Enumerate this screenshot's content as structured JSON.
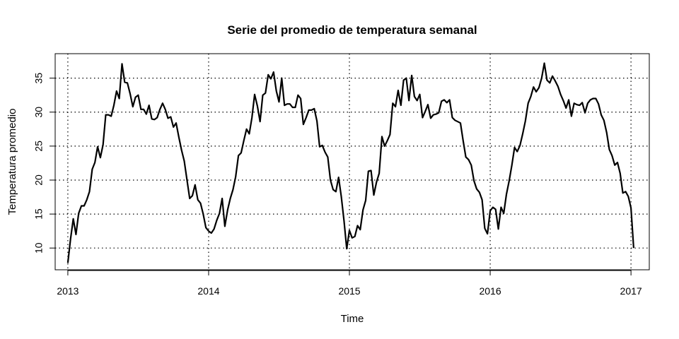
{
  "chart_data": {
    "type": "line",
    "title": "Serie del promedio de temperatura semanal",
    "xlabel": "Time",
    "ylabel": "Temperatura promedio",
    "x_ticks": [
      2013,
      2014,
      2015,
      2016,
      2017
    ],
    "y_ticks": [
      10,
      15,
      20,
      25,
      30,
      35
    ],
    "xlim": [
      2012.91,
      2017.13
    ],
    "ylim": [
      6.8,
      38.6
    ],
    "grid": "dotted",
    "line_color": "#000000",
    "series": [
      {
        "x": [
          2013.0,
          2013.0192,
          2013.0385,
          2013.0577,
          2013.0769,
          2013.0962,
          2013.1154,
          2013.1346,
          2013.1538,
          2013.1731,
          2013.1923,
          2013.2115,
          2013.2308,
          2013.25,
          2013.2692,
          2013.2885,
          2013.3077,
          2013.3269,
          2013.3462,
          2013.3654,
          2013.3846,
          2013.4038,
          2013.4231,
          2013.4423,
          2013.4615,
          2013.4808,
          2013.5,
          2013.5192,
          2013.5385,
          2013.5577,
          2013.5769,
          2013.5962,
          2013.6154,
          2013.6346,
          2013.6538,
          2013.6731,
          2013.6923,
          2013.7115,
          2013.7308,
          2013.75,
          2013.7692,
          2013.7885,
          2013.8077,
          2013.8269,
          2013.8462,
          2013.8654,
          2013.8846,
          2013.9038,
          2013.9231,
          2013.9423,
          2013.9615,
          2013.9808,
          2014.0,
          2014.0192,
          2014.0385,
          2014.0577,
          2014.0769,
          2014.0962,
          2014.1154,
          2014.1346,
          2014.1538,
          2014.1731,
          2014.1923,
          2014.2115,
          2014.2308,
          2014.25,
          2014.2692,
          2014.2885,
          2014.3077,
          2014.3269,
          2014.3462,
          2014.3654,
          2014.3846,
          2014.4038,
          2014.4231,
          2014.4423,
          2014.4615,
          2014.4808,
          2014.5,
          2014.5192,
          2014.5385,
          2014.5577,
          2014.5769,
          2014.5962,
          2014.6154,
          2014.6346,
          2014.6538,
          2014.6731,
          2014.6923,
          2014.7115,
          2014.7308,
          2014.75,
          2014.7692,
          2014.7885,
          2014.8077,
          2014.8269,
          2014.8462,
          2014.8654,
          2014.8846,
          2014.9038,
          2014.9231,
          2014.9423,
          2014.9615,
          2014.9808,
          2015.0,
          2015.0192,
          2015.0385,
          2015.0577,
          2015.0769,
          2015.0962,
          2015.1154,
          2015.1346,
          2015.1538,
          2015.1731,
          2015.1923,
          2015.2115,
          2015.2308,
          2015.25,
          2015.2692,
          2015.2885,
          2015.3077,
          2015.3269,
          2015.3462,
          2015.3654,
          2015.3846,
          2015.4038,
          2015.4231,
          2015.4423,
          2015.4615,
          2015.4808,
          2015.5,
          2015.5192,
          2015.5385,
          2015.5577,
          2015.5769,
          2015.5962,
          2015.6154,
          2015.6346,
          2015.6538,
          2015.6731,
          2015.6923,
          2015.7115,
          2015.7308,
          2015.75,
          2015.7692,
          2015.7885,
          2015.8077,
          2015.8269,
          2015.8462,
          2015.8654,
          2015.8846,
          2015.9038,
          2015.9231,
          2015.9423,
          2015.9615,
          2015.9808,
          2016.0,
          2016.0192,
          2016.0385,
          2016.0577,
          2016.0769,
          2016.0962,
          2016.1154,
          2016.1346,
          2016.1538,
          2016.1731,
          2016.1923,
          2016.2115,
          2016.2308,
          2016.25,
          2016.2692,
          2016.2885,
          2016.3077,
          2016.3269,
          2016.3462,
          2016.3654,
          2016.3846,
          2016.4038,
          2016.4231,
          2016.4423,
          2016.4615,
          2016.4808,
          2016.5,
          2016.5192,
          2016.5385,
          2016.5577,
          2016.5769,
          2016.5962,
          2016.6154,
          2016.6346,
          2016.6538,
          2016.6731,
          2016.6923,
          2016.7115,
          2016.7308,
          2016.75,
          2016.7692,
          2016.7885,
          2016.8077,
          2016.8269,
          2016.8462,
          2016.8654,
          2016.8846,
          2016.9038,
          2016.9231,
          2016.9423,
          2016.9615,
          2016.9808,
          2017.0,
          2017.0192
        ],
        "values": [
          7.8,
          11.3,
          14.3,
          12.0,
          15.1,
          16.2,
          16.2,
          17.1,
          18.3,
          21.6,
          22.6,
          24.9,
          23.3,
          25.2,
          29.6,
          29.6,
          29.4,
          31.0,
          33.1,
          32.0,
          37.1,
          34.4,
          34.3,
          32.7,
          30.8,
          32.2,
          32.5,
          30.4,
          30.4,
          29.7,
          31.0,
          29.0,
          28.9,
          29.2,
          30.4,
          31.3,
          30.4,
          29.1,
          29.3,
          27.8,
          28.4,
          26.3,
          24.4,
          22.8,
          20.0,
          17.3,
          17.7,
          19.3,
          17.1,
          16.6,
          15.0,
          13.0,
          12.5,
          12.2,
          12.8,
          14.1,
          15.1,
          17.3,
          13.2,
          15.6,
          17.3,
          18.6,
          20.5,
          23.6,
          24.0,
          25.8,
          27.5,
          26.8,
          29.2,
          32.6,
          30.9,
          28.6,
          32.5,
          32.8,
          35.5,
          34.9,
          35.9,
          33.1,
          31.5,
          35.0,
          31.0,
          31.2,
          31.2,
          30.7,
          30.7,
          32.5,
          32.0,
          28.2,
          29.2,
          30.3,
          30.3,
          30.5,
          28.7,
          24.9,
          25.1,
          24.1,
          23.4,
          20.0,
          18.6,
          18.3,
          20.4,
          17.6,
          14.0,
          9.9,
          12.6,
          11.5,
          11.7,
          13.3,
          12.7,
          15.6,
          17.0,
          21.3,
          21.4,
          17.8,
          19.7,
          21.0,
          26.4,
          25.0,
          25.8,
          26.7,
          31.3,
          30.8,
          33.2,
          31.0,
          34.7,
          35.0,
          31.7,
          35.4,
          32.3,
          31.7,
          32.6,
          29.2,
          30.1,
          31.1,
          29.1,
          29.6,
          29.7,
          29.9,
          31.6,
          31.8,
          31.4,
          31.8,
          29.2,
          28.8,
          28.6,
          28.4,
          25.8,
          23.4,
          23.0,
          22.2,
          19.9,
          18.7,
          18.2,
          17.1,
          12.9,
          12.1,
          15.5,
          16.0,
          15.7,
          12.8,
          16.0,
          15.1,
          17.9,
          19.9,
          22.2,
          24.8,
          24.2,
          25.1,
          26.8,
          28.7,
          31.3,
          32.3,
          33.7,
          33.0,
          33.6,
          35.0,
          37.2,
          34.7,
          34.3,
          35.3,
          34.6,
          33.8,
          32.6,
          31.7,
          30.6,
          31.8,
          29.4,
          31.3,
          31.1,
          31.0,
          31.4,
          29.9,
          31.3,
          31.8,
          32.0,
          32.0,
          31.2,
          29.6,
          28.8,
          27.0,
          24.5,
          23.6,
          22.2,
          22.6,
          21.0,
          18.1,
          18.3,
          17.6,
          15.9,
          10.0
        ]
      }
    ]
  }
}
